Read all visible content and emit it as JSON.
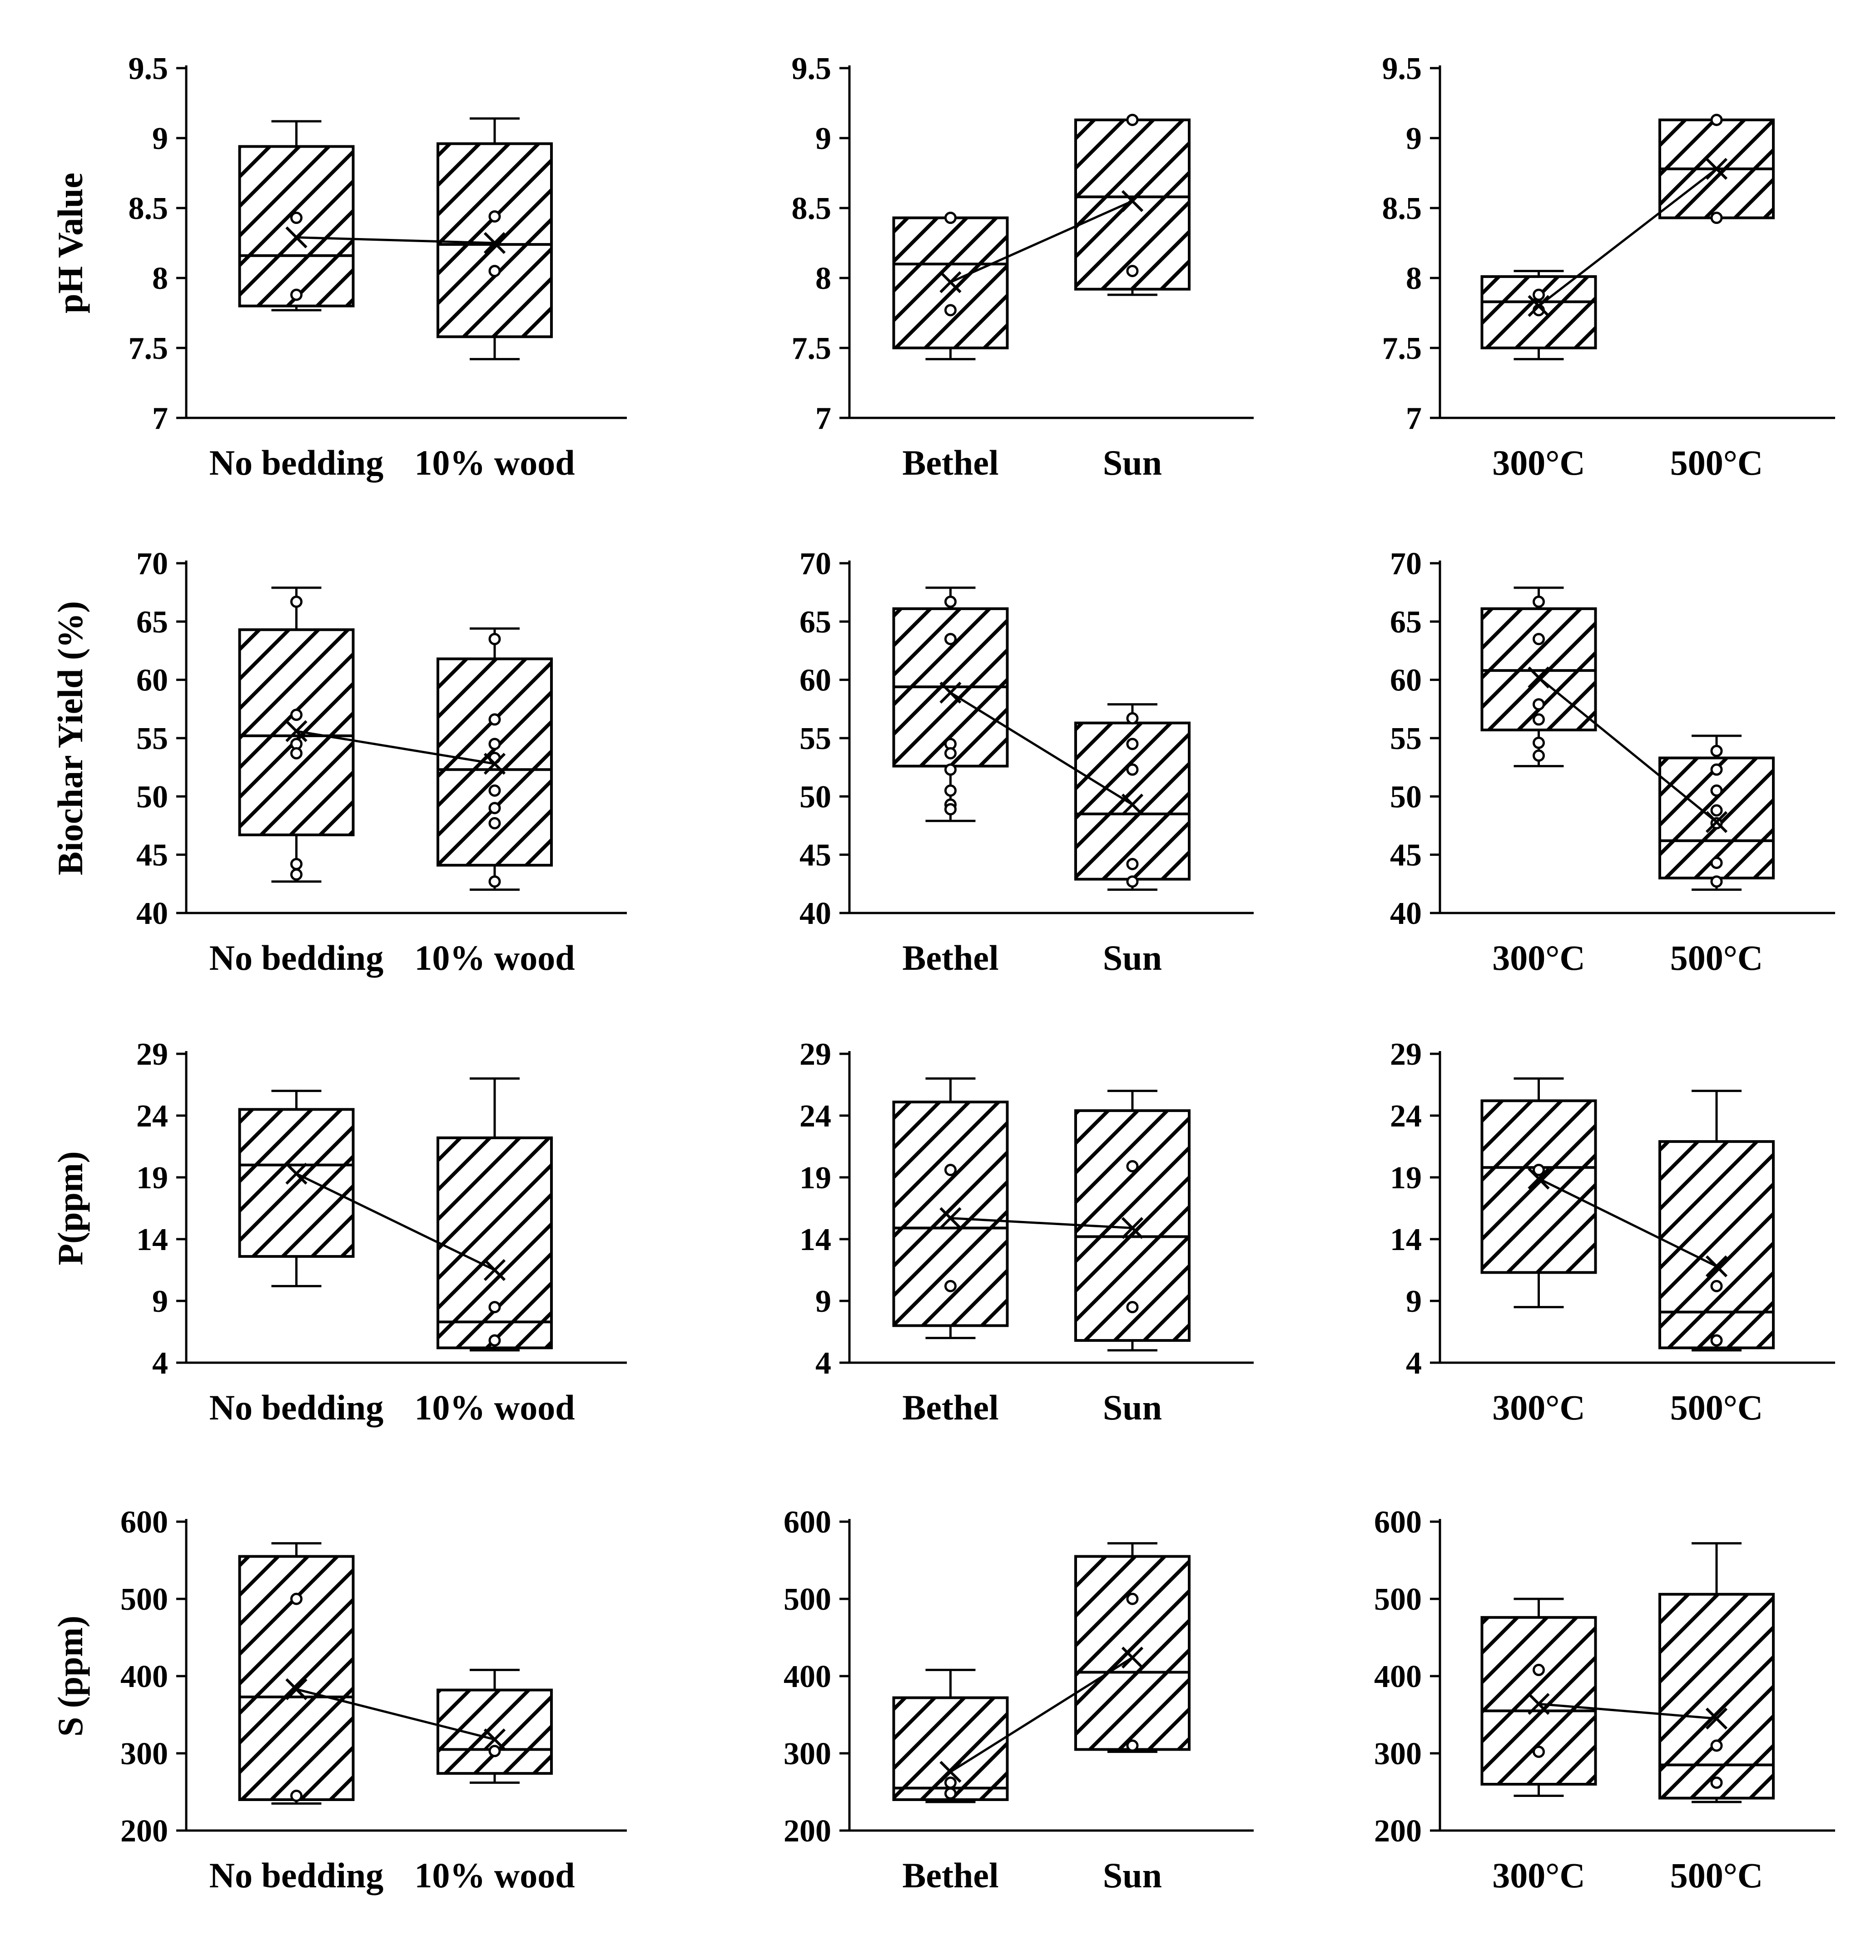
{
  "chart_data": [
    {
      "type": "box",
      "row": 0,
      "col": 0,
      "ylabel": "pH Value",
      "ylim": [
        7,
        9.5
      ],
      "yticks": [
        7,
        7.5,
        8,
        8.5,
        9,
        9.5
      ],
      "yticklabels": [
        "7",
        "7.5",
        "8",
        "8.5",
        "9",
        "9.5"
      ],
      "categories": [
        "No bedding",
        "10% wood"
      ],
      "boxes": [
        {
          "min": 7.77,
          "q1": 7.8,
          "median": 8.16,
          "q3": 8.94,
          "max": 9.12,
          "mean": 8.29,
          "points": [
            8.43,
            7.88
          ]
        },
        {
          "min": 7.42,
          "q1": 7.58,
          "median": 8.24,
          "q3": 8.96,
          "max": 9.14,
          "mean": 8.25,
          "points": [
            8.44,
            8.05
          ]
        }
      ]
    },
    {
      "type": "box",
      "row": 0,
      "col": 1,
      "ylabel": "",
      "ylim": [
        7,
        9.5
      ],
      "yticks": [
        7,
        7.5,
        8,
        8.5,
        9,
        9.5
      ],
      "yticklabels": [
        "7",
        "7.5",
        "8",
        "8.5",
        "9",
        "9.5"
      ],
      "categories": [
        "Bethel",
        "Sun"
      ],
      "boxes": [
        {
          "min": 7.42,
          "q1": 7.5,
          "median": 8.1,
          "q3": 8.43,
          "max": 8.43,
          "mean": 7.97,
          "points": [
            8.43,
            7.77
          ]
        },
        {
          "min": 7.88,
          "q1": 7.92,
          "median": 8.58,
          "q3": 9.13,
          "max": 9.13,
          "mean": 8.55,
          "points": [
            9.13,
            8.05
          ]
        }
      ]
    },
    {
      "type": "box",
      "row": 0,
      "col": 2,
      "ylabel": "",
      "ylim": [
        7,
        9.5
      ],
      "yticks": [
        7,
        7.5,
        8,
        8.5,
        9,
        9.5
      ],
      "yticklabels": [
        "7",
        "7.5",
        "8",
        "8.5",
        "9",
        "9.5"
      ],
      "categories": [
        "300°C",
        "500°C"
      ],
      "boxes": [
        {
          "min": 7.42,
          "q1": 7.5,
          "median": 7.83,
          "q3": 8.01,
          "max": 8.05,
          "mean": 7.8,
          "points": [
            7.88,
            7.77
          ]
        },
        {
          "min": 8.43,
          "q1": 8.43,
          "median": 8.78,
          "q3": 9.13,
          "max": 9.13,
          "mean": 8.78,
          "points": [
            9.13,
            8.43
          ]
        }
      ]
    },
    {
      "type": "box",
      "row": 1,
      "col": 0,
      "ylabel": "Biochar Yield (%)",
      "ylim": [
        40,
        70
      ],
      "yticks": [
        40,
        45,
        50,
        55,
        60,
        65,
        70
      ],
      "yticklabels": [
        "40",
        "45",
        "50",
        "55",
        "60",
        "65",
        "70"
      ],
      "categories": [
        "No bedding",
        "10% wood"
      ],
      "boxes": [
        {
          "min": 42.7,
          "q1": 46.7,
          "median": 55.2,
          "q3": 64.3,
          "max": 67.9,
          "mean": 55.6,
          "points": [
            66.7,
            57.0,
            54.5,
            53.7,
            44.2,
            43.3
          ]
        },
        {
          "min": 42.0,
          "q1": 44.1,
          "median": 52.3,
          "q3": 61.8,
          "max": 64.4,
          "mean": 52.8,
          "points": [
            63.5,
            56.6,
            54.5,
            53.3,
            50.5,
            49.0,
            47.7,
            42.7
          ]
        }
      ]
    },
    {
      "type": "box",
      "row": 1,
      "col": 1,
      "ylabel": "",
      "ylim": [
        40,
        70
      ],
      "yticks": [
        40,
        45,
        50,
        55,
        60,
        65,
        70
      ],
      "yticklabels": [
        "40",
        "45",
        "50",
        "55",
        "60",
        "65",
        "70"
      ],
      "categories": [
        "Bethel",
        "Sun"
      ],
      "boxes": [
        {
          "min": 47.9,
          "q1": 52.6,
          "median": 59.4,
          "q3": 66.1,
          "max": 67.9,
          "mean": 58.9,
          "points": [
            66.7,
            63.5,
            54.5,
            53.7,
            52.3,
            50.5,
            49.3,
            48.9
          ]
        },
        {
          "min": 42.0,
          "q1": 42.9,
          "median": 48.5,
          "q3": 56.3,
          "max": 57.9,
          "mean": 49.3,
          "points": [
            56.7,
            54.5,
            52.3,
            44.2,
            42.7
          ]
        }
      ]
    },
    {
      "type": "box",
      "row": 1,
      "col": 2,
      "ylabel": "",
      "ylim": [
        40,
        70
      ],
      "yticks": [
        40,
        45,
        50,
        55,
        60,
        65,
        70
      ],
      "yticklabels": [
        "40",
        "45",
        "50",
        "55",
        "60",
        "65",
        "70"
      ],
      "categories": [
        "300°C",
        "500°C"
      ],
      "boxes": [
        {
          "min": 52.6,
          "q1": 55.7,
          "median": 60.8,
          "q3": 66.1,
          "max": 67.9,
          "mean": 60.2,
          "points": [
            66.7,
            63.5,
            57.9,
            56.6,
            54.6,
            53.5
          ]
        },
        {
          "min": 42.0,
          "q1": 43.0,
          "median": 46.2,
          "q3": 53.3,
          "max": 55.2,
          "mean": 47.8,
          "points": [
            53.9,
            52.3,
            50.5,
            48.8,
            47.7,
            44.3,
            42.7
          ]
        }
      ]
    },
    {
      "type": "box",
      "row": 2,
      "col": 0,
      "ylabel": "P(ppm)",
      "ylim": [
        4,
        29
      ],
      "yticks": [
        4,
        9,
        14,
        19,
        24,
        29
      ],
      "yticklabels": [
        "4",
        "9",
        "14",
        "19",
        "24",
        "29"
      ],
      "categories": [
        "No bedding",
        "10% wood"
      ],
      "boxes": [
        {
          "min": 10.2,
          "q1": 12.6,
          "median": 20.0,
          "q3": 24.5,
          "max": 26.0,
          "mean": 19.3,
          "points": []
        },
        {
          "min": 5.0,
          "q1": 5.2,
          "median": 7.3,
          "q3": 22.2,
          "max": 27.0,
          "mean": 11.5,
          "points": [
            8.5,
            5.8
          ]
        }
      ]
    },
    {
      "type": "box",
      "row": 2,
      "col": 1,
      "ylabel": "",
      "ylim": [
        4,
        29
      ],
      "yticks": [
        4,
        9,
        14,
        19,
        24,
        29
      ],
      "yticklabels": [
        "4",
        "9",
        "14",
        "19",
        "24",
        "29"
      ],
      "categories": [
        "Bethel",
        "Sun"
      ],
      "boxes": [
        {
          "min": 6.0,
          "q1": 7.0,
          "median": 14.9,
          "q3": 25.1,
          "max": 27.0,
          "mean": 15.7,
          "points": [
            19.6,
            10.2
          ]
        },
        {
          "min": 5.0,
          "q1": 5.8,
          "median": 14.2,
          "q3": 24.4,
          "max": 26.0,
          "mean": 14.9,
          "points": [
            19.9,
            8.5
          ]
        }
      ]
    },
    {
      "type": "box",
      "row": 2,
      "col": 2,
      "ylabel": "",
      "ylim": [
        4,
        29
      ],
      "yticks": [
        4,
        9,
        14,
        19,
        24,
        29
      ],
      "yticklabels": [
        "4",
        "9",
        "14",
        "19",
        "24",
        "29"
      ],
      "categories": [
        "300°C",
        "500°C"
      ],
      "boxes": [
        {
          "min": 8.5,
          "q1": 11.3,
          "median": 19.8,
          "q3": 25.2,
          "max": 27.0,
          "mean": 18.9,
          "points": [
            19.6
          ]
        },
        {
          "min": 5.0,
          "q1": 5.2,
          "median": 8.1,
          "q3": 21.9,
          "max": 26.0,
          "mean": 11.8,
          "points": [
            10.2,
            5.8
          ]
        }
      ]
    },
    {
      "type": "box",
      "row": 3,
      "col": 0,
      "ylabel": "S (ppm)",
      "ylim": [
        200,
        600
      ],
      "yticks": [
        200,
        300,
        400,
        500,
        600
      ],
      "yticklabels": [
        "200",
        "300",
        "400",
        "500",
        "600"
      ],
      "categories": [
        "No bedding",
        "10% wood"
      ],
      "boxes": [
        {
          "min": 235,
          "q1": 240,
          "median": 373,
          "q3": 555,
          "max": 572,
          "mean": 383,
          "points": [
            500,
            245
          ]
        },
        {
          "min": 262,
          "q1": 274,
          "median": 305,
          "q3": 382,
          "max": 408,
          "mean": 318,
          "points": [
            303
          ]
        }
      ]
    },
    {
      "type": "box",
      "row": 3,
      "col": 1,
      "ylabel": "",
      "ylim": [
        200,
        600
      ],
      "yticks": [
        200,
        300,
        400,
        500,
        600
      ],
      "yticklabels": [
        "200",
        "300",
        "400",
        "500",
        "600"
      ],
      "categories": [
        "Bethel",
        "Sun"
      ],
      "boxes": [
        {
          "min": 237,
          "q1": 240,
          "median": 255,
          "q3": 372,
          "max": 408,
          "mean": 276,
          "points": [
            262,
            248
          ]
        },
        {
          "min": 302,
          "q1": 305,
          "median": 405,
          "q3": 555,
          "max": 572,
          "mean": 424,
          "points": [
            500,
            310
          ]
        }
      ]
    },
    {
      "type": "box",
      "row": 3,
      "col": 2,
      "ylabel": "",
      "ylim": [
        200,
        600
      ],
      "yticks": [
        200,
        300,
        400,
        500,
        600
      ],
      "yticklabels": [
        "200",
        "300",
        "400",
        "500",
        "600"
      ],
      "categories": [
        "300°C",
        "500°C"
      ],
      "boxes": [
        {
          "min": 245,
          "q1": 260,
          "median": 355,
          "q3": 476,
          "max": 500,
          "mean": 364,
          "points": [
            408,
            302
          ]
        },
        {
          "min": 237,
          "q1": 242,
          "median": 285,
          "q3": 506,
          "max": 572,
          "mean": 345,
          "points": [
            310,
            262
          ]
        }
      ]
    }
  ]
}
